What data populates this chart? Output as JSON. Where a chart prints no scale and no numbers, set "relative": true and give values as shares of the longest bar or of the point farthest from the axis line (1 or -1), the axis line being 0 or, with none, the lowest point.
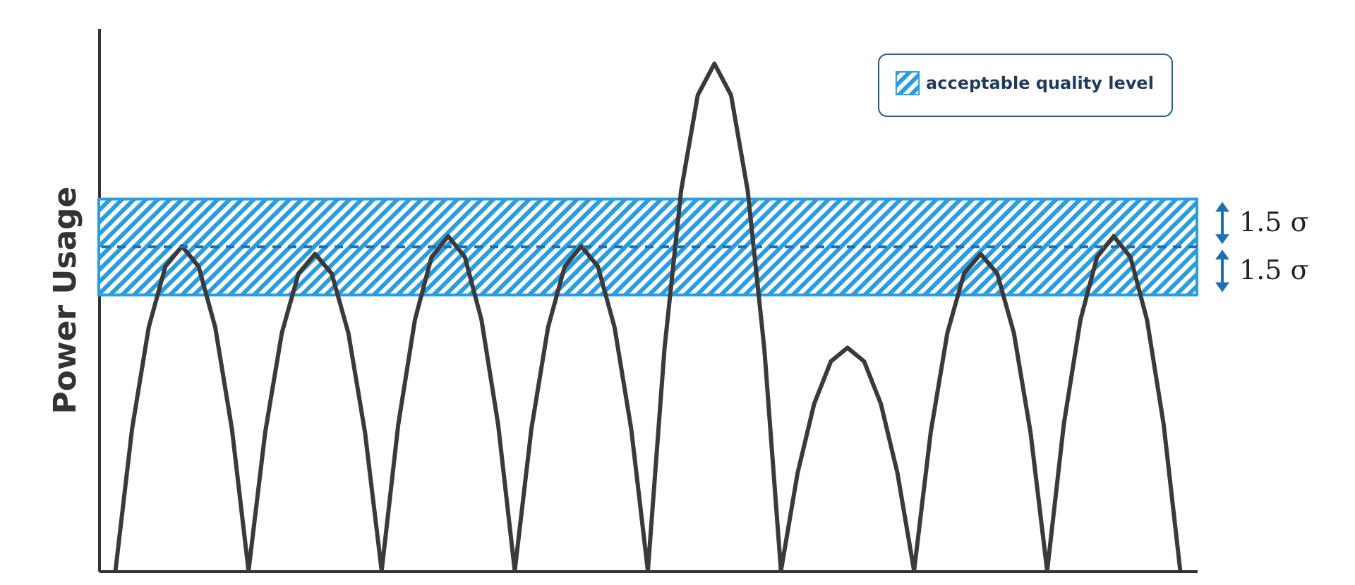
{
  "chart_data": {
    "type": "line",
    "ylabel": "Power Usage",
    "relative": true,
    "legend": "top right",
    "marker": "none",
    "line_style": "solid",
    "categories": [
      null,
      null,
      null,
      null,
      null,
      null,
      null,
      null,
      null,
      null,
      null,
      null,
      null,
      null,
      null,
      null,
      null,
      null,
      null,
      null,
      null,
      null,
      null,
      null,
      null,
      null,
      null,
      null,
      null,
      null,
      null,
      null,
      null,
      null,
      null,
      null,
      null,
      null,
      null,
      null,
      null,
      null,
      null,
      null,
      null,
      null,
      null,
      null,
      null,
      null,
      null,
      null,
      null,
      null,
      null,
      null,
      null,
      null,
      null,
      null,
      null,
      null,
      null,
      null,
      null
    ],
    "series": [
      {
        "color": "#3a3a3a",
        "values": [
          0,
          0.28,
          0.48,
          0.6,
          0.64,
          0.6,
          0.48,
          0.28,
          0,
          0.273,
          0.469,
          0.586,
          0.625,
          0.586,
          0.469,
          0.273,
          0,
          0.289,
          0.495,
          0.619,
          0.66,
          0.619,
          0.495,
          0.289,
          0,
          0.28,
          0.48,
          0.6,
          0.64,
          0.6,
          0.48,
          0.28,
          0,
          0.438,
          0.75,
          0.938,
          1,
          0.938,
          0.75,
          0.438,
          0,
          0.193,
          0.33,
          0.413,
          0.44,
          0.413,
          0.33,
          0.193,
          0,
          0.273,
          0.469,
          0.586,
          0.625,
          0.586,
          0.469,
          0.273,
          0,
          0.289,
          0.495,
          0.619,
          0.66,
          0.619,
          0.495,
          0.289,
          0
        ]
      }
    ],
    "bands": [
      {
        "axis": "y",
        "from": 0.544,
        "to": 0.733,
        "label": "acceptable quality level",
        "color": "#2a9de0"
      }
    ],
    "ref_lines": [
      {
        "axis": "y",
        "value": 0.639,
        "color": "#1f6fb2",
        "line_style": "dashed"
      }
    ],
    "annotations": [
      "1.5 σ",
      "1.5 σ"
    ]
  }
}
